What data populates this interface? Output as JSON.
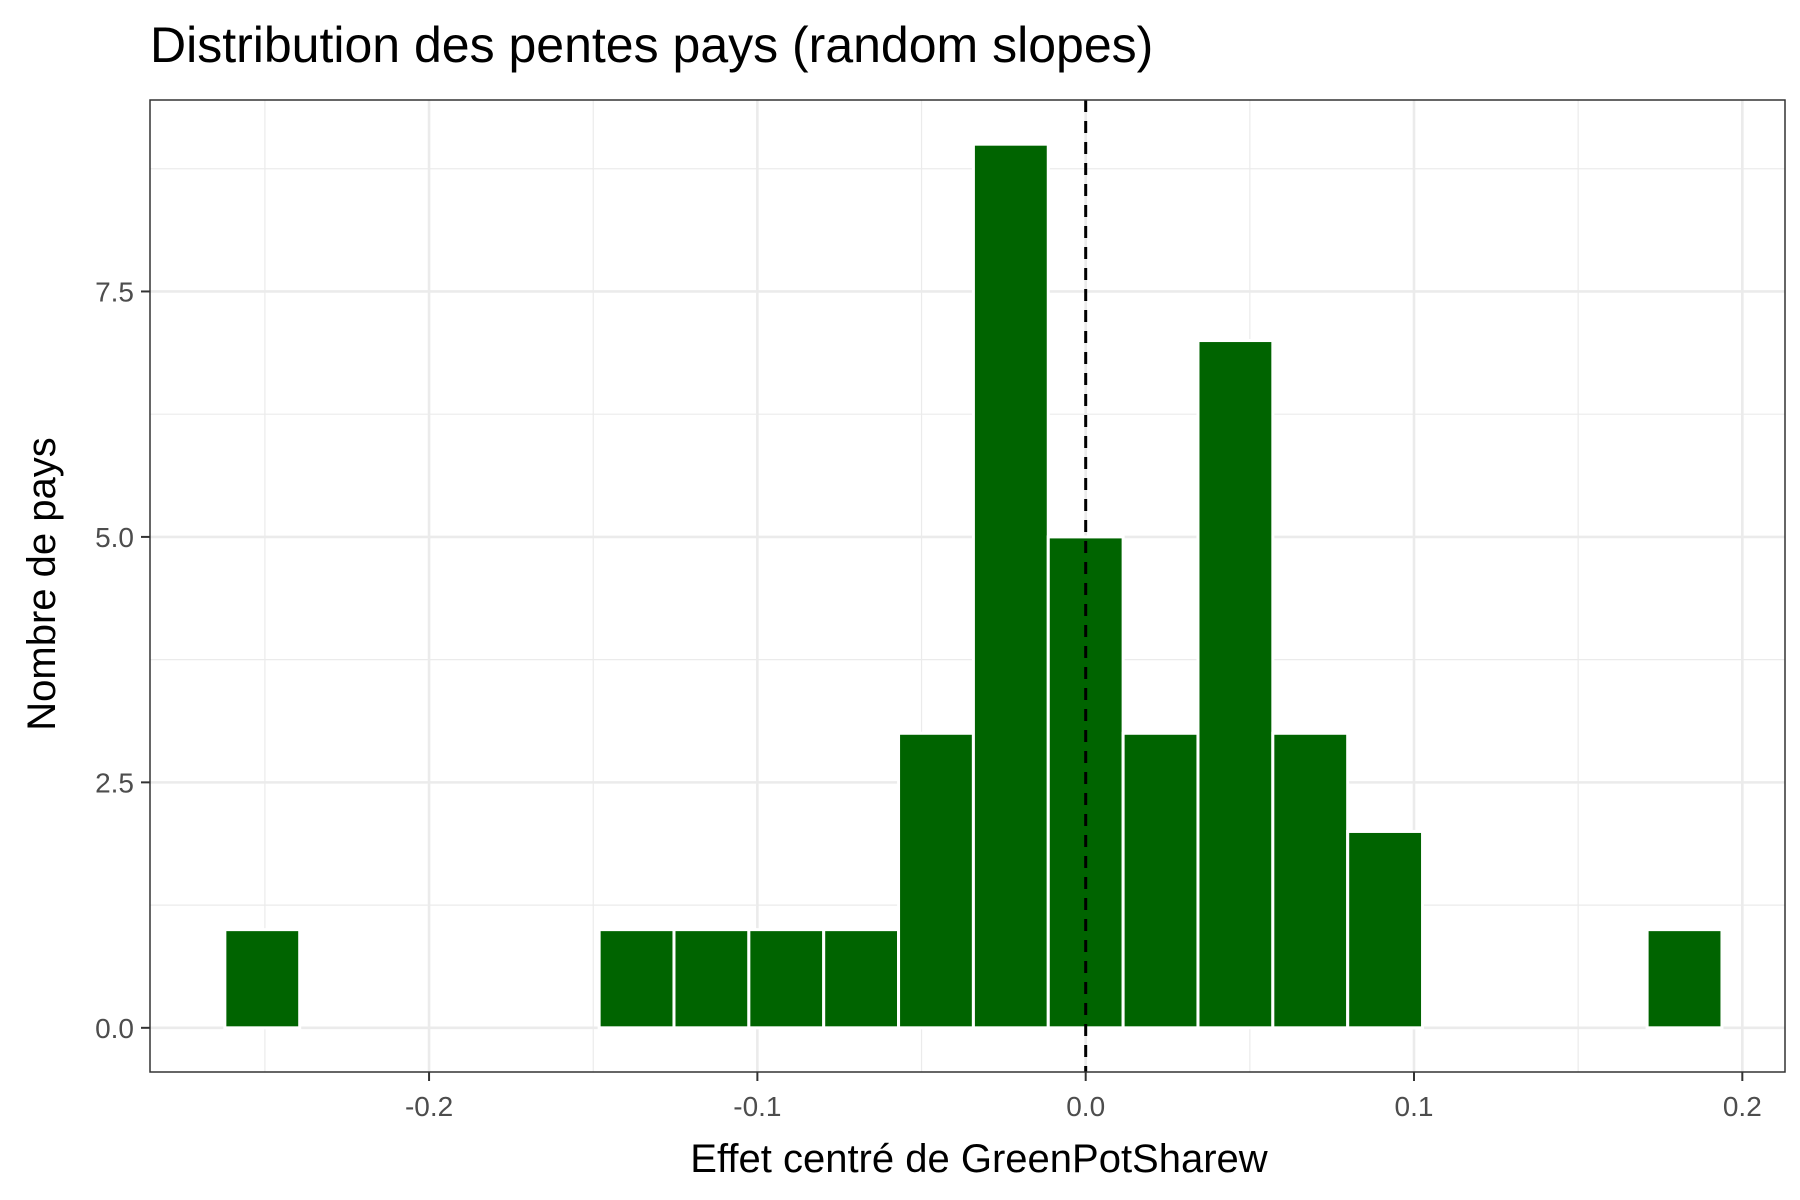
{
  "chart_data": {
    "type": "bar",
    "title": "Distribution des pentes pays (random slopes)",
    "xlabel": "Effet centré de GreenPotSharew",
    "ylabel": "Nombre de pays",
    "xlim": [
      -0.285,
      0.213
    ],
    "ylim": [
      -0.45,
      9.45
    ],
    "x_ticks": [
      -0.2,
      -0.1,
      0.0,
      0.1,
      0.2
    ],
    "x_tick_labels": [
      "-0.2",
      "-0.1",
      "0.0",
      "0.1",
      "0.2"
    ],
    "y_ticks": [
      0.0,
      2.5,
      5.0,
      7.5
    ],
    "y_tick_labels": [
      "0.0",
      "2.5",
      "5.0",
      "7.5"
    ],
    "bin_width": 0.0228,
    "bins": [
      {
        "x": -0.2508,
        "count": 1
      },
      {
        "x": -0.228,
        "count": 0
      },
      {
        "x": -0.2052,
        "count": 0
      },
      {
        "x": -0.1824,
        "count": 0
      },
      {
        "x": -0.1596,
        "count": 0
      },
      {
        "x": -0.1368,
        "count": 1
      },
      {
        "x": -0.114,
        "count": 1
      },
      {
        "x": -0.0912,
        "count": 1
      },
      {
        "x": -0.0684,
        "count": 1
      },
      {
        "x": -0.0456,
        "count": 3
      },
      {
        "x": -0.0228,
        "count": 9
      },
      {
        "x": 0.0,
        "count": 5
      },
      {
        "x": 0.0228,
        "count": 3
      },
      {
        "x": 0.0456,
        "count": 7
      },
      {
        "x": 0.0684,
        "count": 3
      },
      {
        "x": 0.0912,
        "count": 2
      },
      {
        "x": 0.114,
        "count": 0
      },
      {
        "x": 0.1368,
        "count": 0
      },
      {
        "x": 0.1596,
        "count": 0
      },
      {
        "x": 0.1824,
        "count": 1
      }
    ],
    "reference_line": {
      "x": 0.0,
      "style": "dashed",
      "color": "#000000"
    },
    "bar_color": "#006400",
    "bar_outline": "#ffffff",
    "grid": true,
    "legend": "none"
  }
}
